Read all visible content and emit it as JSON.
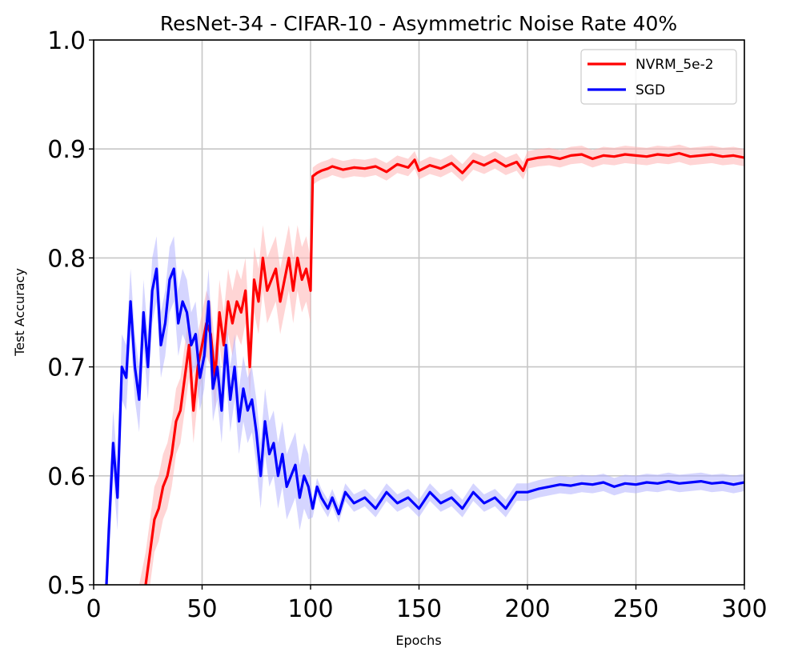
{
  "chart_data": {
    "type": "line",
    "title": "ResNet-34 - CIFAR-10 - Asymmetric Noise Rate 40%",
    "xlabel": "Epochs",
    "ylabel": "Test Accuracy",
    "xlim": [
      0,
      300
    ],
    "ylim": [
      0.5,
      1.0
    ],
    "xticks": [
      0,
      50,
      100,
      150,
      200,
      250,
      300
    ],
    "xtick_labels": [
      "0",
      "50",
      "100",
      "150",
      "200",
      "250",
      "300"
    ],
    "yticks": [
      0.5,
      0.6,
      0.7,
      0.8,
      0.9,
      1.0
    ],
    "ytick_labels": [
      "0.5",
      "0.6",
      "0.7",
      "0.8",
      "0.9",
      "1.0"
    ],
    "grid": true,
    "legend_position": "top-right",
    "series": [
      {
        "name": "NVRM_5e-2",
        "color": "#ff0000",
        "band_color": "#ffb3b3",
        "x": [
          20,
          24,
          26,
          28,
          30,
          32,
          34,
          36,
          38,
          40,
          42,
          44,
          46,
          48,
          50,
          52,
          54,
          56,
          58,
          60,
          62,
          64,
          66,
          68,
          70,
          72,
          74,
          76,
          78,
          80,
          82,
          84,
          86,
          88,
          90,
          92,
          94,
          96,
          98,
          100,
          101,
          103,
          105,
          108,
          110,
          115,
          120,
          125,
          130,
          135,
          140,
          145,
          148,
          150,
          155,
          160,
          165,
          170,
          175,
          180,
          185,
          190,
          195,
          198,
          200,
          205,
          210,
          215,
          220,
          225,
          230,
          235,
          240,
          245,
          250,
          255,
          260,
          265,
          270,
          275,
          280,
          285,
          290,
          295,
          300
        ],
        "values": [
          0.46,
          0.5,
          0.53,
          0.56,
          0.57,
          0.59,
          0.6,
          0.62,
          0.65,
          0.66,
          0.69,
          0.72,
          0.66,
          0.7,
          0.72,
          0.74,
          0.73,
          0.69,
          0.75,
          0.72,
          0.76,
          0.74,
          0.76,
          0.75,
          0.77,
          0.7,
          0.78,
          0.76,
          0.8,
          0.77,
          0.78,
          0.79,
          0.76,
          0.78,
          0.8,
          0.77,
          0.8,
          0.78,
          0.79,
          0.77,
          0.875,
          0.878,
          0.88,
          0.882,
          0.884,
          0.881,
          0.883,
          0.882,
          0.884,
          0.879,
          0.886,
          0.883,
          0.89,
          0.88,
          0.885,
          0.882,
          0.887,
          0.878,
          0.889,
          0.885,
          0.89,
          0.884,
          0.888,
          0.88,
          0.89,
          0.892,
          0.893,
          0.891,
          0.894,
          0.895,
          0.891,
          0.894,
          0.893,
          0.895,
          0.894,
          0.893,
          0.895,
          0.894,
          0.896,
          0.893,
          0.894,
          0.895,
          0.893,
          0.894,
          0.892
        ]
      },
      {
        "name": "SGD",
        "color": "#0000ff",
        "band_color": "#b3b3ff",
        "x": [
          5,
          7,
          9,
          11,
          13,
          15,
          17,
          19,
          21,
          23,
          25,
          27,
          29,
          31,
          33,
          35,
          37,
          39,
          41,
          43,
          45,
          47,
          49,
          51,
          53,
          55,
          57,
          59,
          61,
          63,
          65,
          67,
          69,
          71,
          73,
          75,
          77,
          79,
          81,
          83,
          85,
          87,
          89,
          91,
          93,
          95,
          97,
          99,
          101,
          103,
          105,
          108,
          110,
          113,
          116,
          120,
          125,
          130,
          135,
          140,
          145,
          150,
          155,
          160,
          165,
          170,
          175,
          180,
          185,
          190,
          195,
          200,
          205,
          210,
          215,
          220,
          225,
          230,
          235,
          240,
          245,
          250,
          255,
          260,
          265,
          270,
          275,
          280,
          285,
          290,
          295,
          300
        ],
        "values": [
          0.46,
          0.55,
          0.63,
          0.58,
          0.7,
          0.69,
          0.76,
          0.7,
          0.67,
          0.75,
          0.7,
          0.77,
          0.79,
          0.72,
          0.74,
          0.78,
          0.79,
          0.74,
          0.76,
          0.75,
          0.72,
          0.73,
          0.69,
          0.71,
          0.76,
          0.68,
          0.7,
          0.66,
          0.72,
          0.67,
          0.7,
          0.65,
          0.68,
          0.66,
          0.67,
          0.64,
          0.6,
          0.65,
          0.62,
          0.63,
          0.6,
          0.62,
          0.59,
          0.6,
          0.61,
          0.58,
          0.6,
          0.59,
          0.57,
          0.59,
          0.58,
          0.57,
          0.58,
          0.565,
          0.585,
          0.575,
          0.58,
          0.57,
          0.585,
          0.575,
          0.58,
          0.57,
          0.585,
          0.575,
          0.58,
          0.57,
          0.585,
          0.575,
          0.58,
          0.57,
          0.585,
          0.585,
          0.588,
          0.59,
          0.592,
          0.591,
          0.593,
          0.592,
          0.594,
          0.59,
          0.593,
          0.592,
          0.594,
          0.593,
          0.595,
          0.593,
          0.594,
          0.595,
          0.593,
          0.594,
          0.592,
          0.594
        ]
      }
    ]
  }
}
